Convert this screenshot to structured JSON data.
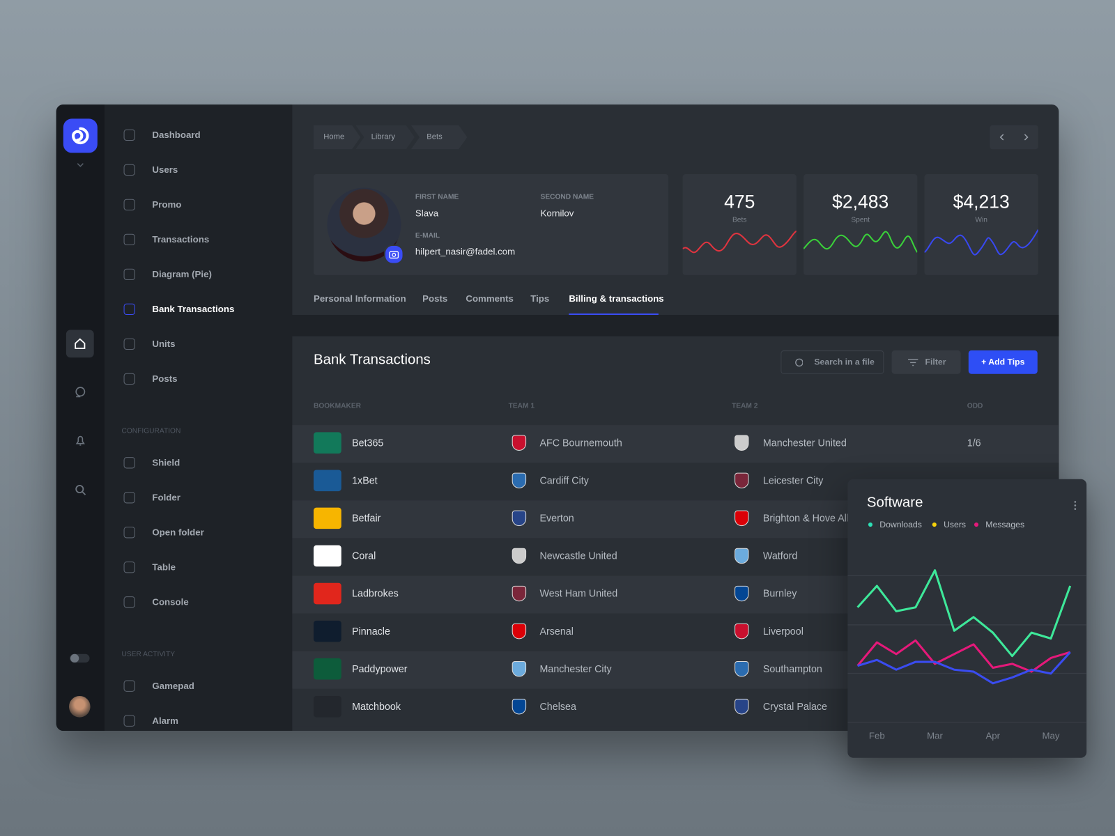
{
  "nav": {
    "main": [
      "Dashboard",
      "Users",
      "Promo",
      "Transactions",
      "Diagram (Pie)",
      "Bank Transactions",
      "Units",
      "Posts"
    ],
    "active": 5,
    "configuration_title": "CONFIGURATION",
    "configuration": [
      "Shield",
      "Folder",
      "Open folder",
      "Table",
      "Console"
    ],
    "user_activity_title": "USER ACTIVITY",
    "user_activity": [
      "Gamepad",
      "Alarm"
    ]
  },
  "breadcrumb": [
    "Home",
    "Library",
    "Bets"
  ],
  "profile": {
    "first_name_label": "FIRST NAME",
    "first_name": "Slava",
    "second_name_label": "SECOND NAME",
    "second_name": "Kornilov",
    "email_label": "E-MAIL",
    "email": "hilpert_nasir@fadel.com"
  },
  "stats": [
    {
      "value": "475",
      "label": "Bets",
      "color": "#e0343f"
    },
    {
      "value": "$2,483",
      "label": "Spent",
      "color": "#3ad13a"
    },
    {
      "value": "$4,213",
      "label": "Win",
      "color": "#3848f0"
    }
  ],
  "tabs": [
    "Personal Information",
    "Posts",
    "Comments",
    "Tips",
    "Billing & transactions"
  ],
  "active_tab": 4,
  "table": {
    "title": "Bank Transactions",
    "search_placeholder": "Search in a file",
    "filter": "Filter",
    "add_button": "+ Add Tips",
    "columns": [
      "BOOKMAKER",
      "TEAM 1",
      "TEAM 2",
      "ODD"
    ],
    "rows": [
      {
        "bookmaker": "Bet365",
        "logo_color": "#12795a",
        "team1": "AFC Bournemouth",
        "team2": "Manchester United",
        "odd": "1/6"
      },
      {
        "bookmaker": "1xBet",
        "logo_color": "#1a5a96",
        "team1": "Cardiff City",
        "team2": "Leicester City"
      },
      {
        "bookmaker": "Betfair",
        "logo_color": "#f7b500",
        "team1": "Everton",
        "team2": "Brighton & Hove Albion"
      },
      {
        "bookmaker": "Coral",
        "logo_color": "#ffffff",
        "team1": "Newcastle United",
        "team2": "Watford"
      },
      {
        "bookmaker": "Ladbrokes",
        "logo_color": "#e1261c",
        "team1": "West Ham United",
        "team2": "Burnley"
      },
      {
        "bookmaker": "Pinnacle",
        "logo_color": "#0f1d2e",
        "team1": "Arsenal",
        "team2": "Liverpool"
      },
      {
        "bookmaker": "Paddypower",
        "logo_color": "#0d5c3b",
        "team1": "Manchester City",
        "team2": "Southampton"
      },
      {
        "bookmaker": "Matchbook",
        "logo_color": "#23272d",
        "team1": "Chelsea",
        "team2": "Crystal Palace"
      }
    ]
  },
  "chart_data": {
    "type": "line",
    "title": "Software",
    "categories": [
      null,
      "Feb",
      null,
      null,
      "Mar",
      null,
      null,
      "Apr",
      null,
      null,
      "May",
      null
    ],
    "ylim": [
      0,
      100
    ],
    "series": [
      {
        "name": "Downloads",
        "color": "#3ee89a",
        "legend_color": "#2de0b5",
        "values": [
          59,
          70,
          57,
          59,
          78,
          47,
          54,
          46,
          34,
          46,
          43,
          70
        ]
      },
      {
        "name": "Users",
        "color": "#3a4cf0",
        "legend_color": "#f5d20b",
        "values": [
          29,
          32,
          27,
          31,
          31,
          27,
          26,
          20,
          23,
          27,
          25,
          36
        ]
      },
      {
        "name": "Messages",
        "color": "#e5197a",
        "legend_color": "#e5197a",
        "values": [
          29,
          41,
          35,
          42,
          30,
          35,
          40,
          28,
          30,
          26,
          33,
          36
        ]
      }
    ]
  }
}
